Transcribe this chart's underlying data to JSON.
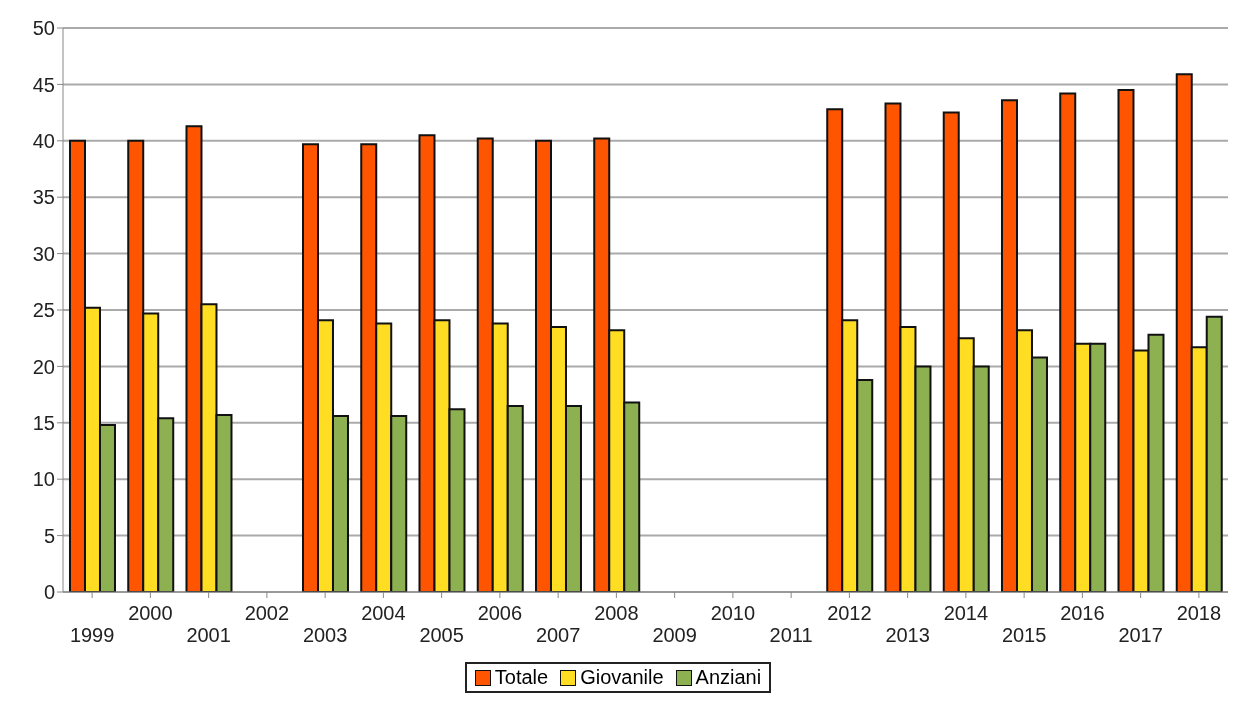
{
  "chart_data": {
    "type": "bar",
    "categories": [
      "1999",
      "2000",
      "2001",
      "2002",
      "2003",
      "2004",
      "2005",
      "2006",
      "2007",
      "2008",
      "2009",
      "2010",
      "2011",
      "2012",
      "2013",
      "2014",
      "2015",
      "2016",
      "2017",
      "2018"
    ],
    "series": [
      {
        "name": "Totale",
        "color": "#ff5500",
        "values": [
          40,
          40,
          41.3,
          null,
          39.7,
          39.7,
          40.5,
          40.2,
          40,
          40.2,
          null,
          null,
          null,
          42.8,
          43.3,
          42.5,
          43.6,
          44.2,
          44.5,
          45.9
        ]
      },
      {
        "name": "Giovanile",
        "color": "#ffdd22",
        "values": [
          25.2,
          24.7,
          25.5,
          null,
          24.1,
          23.8,
          24.1,
          23.8,
          23.5,
          23.2,
          null,
          null,
          null,
          24.1,
          23.5,
          22.5,
          23.2,
          22,
          21.4,
          21.7
        ]
      },
      {
        "name": "Anziani",
        "color": "#8db050",
        "values": [
          14.8,
          15.4,
          15.7,
          null,
          15.6,
          15.6,
          16.2,
          16.5,
          16.5,
          16.8,
          null,
          null,
          null,
          18.8,
          20,
          20,
          20.8,
          22,
          22.8,
          24.4
        ]
      }
    ],
    "ylim": [
      0,
      50
    ],
    "yticks": [
      0,
      5,
      10,
      15,
      20,
      25,
      30,
      35,
      40,
      45,
      50
    ],
    "grid": "y",
    "legend": "bottom"
  }
}
